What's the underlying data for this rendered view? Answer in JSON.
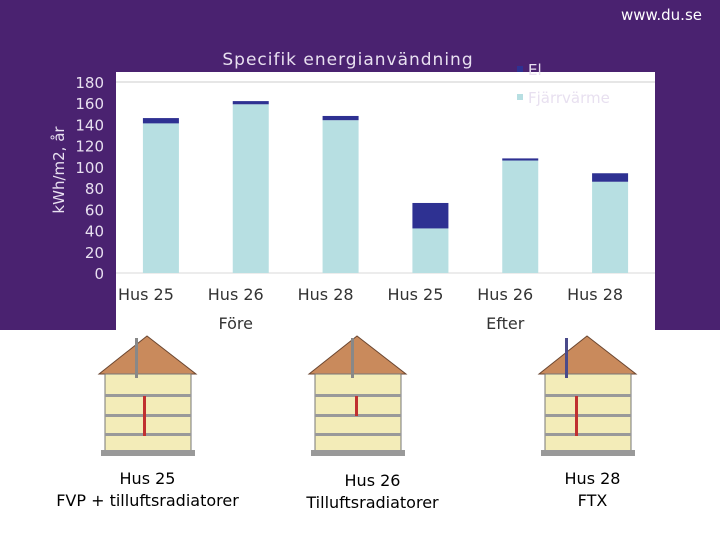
{
  "header": {
    "brand": "www.du.se",
    "accent": "#4a2270"
  },
  "chart_data": {
    "type": "bar",
    "stacked": true,
    "title": "Specifik energianvändning",
    "ylabel": "kWh/m2, år",
    "ylim": [
      0,
      180
    ],
    "yticks": [
      0,
      20,
      40,
      60,
      80,
      100,
      120,
      140,
      160,
      180
    ],
    "categories": [
      "Hus 25",
      "Hus 26",
      "Hus 28",
      "Hus 25",
      "Hus 26",
      "Hus 28"
    ],
    "groups": [
      {
        "label": "Före",
        "span": [
          0,
          2
        ]
      },
      {
        "label": "Efter",
        "span": [
          3,
          5
        ]
      }
    ],
    "series": [
      {
        "name": "Fjärrvärme",
        "color": "#b7dfe2",
        "values": [
          141,
          159,
          144,
          42,
          106,
          86
        ]
      },
      {
        "name": "El",
        "color": "#2e3192",
        "values": [
          5,
          3,
          4,
          24,
          2,
          8
        ]
      }
    ],
    "legend": "top-right",
    "grid": false
  },
  "houses": [
    {
      "caption_line1": "Hus 25",
      "caption_line2": "FVP + tilluftsradiatorer"
    },
    {
      "caption_line1": "Hus 26",
      "caption_line2": "Tilluftsradiatorer"
    },
    {
      "caption_line1": "Hus 28",
      "caption_line2": "FTX"
    }
  ]
}
